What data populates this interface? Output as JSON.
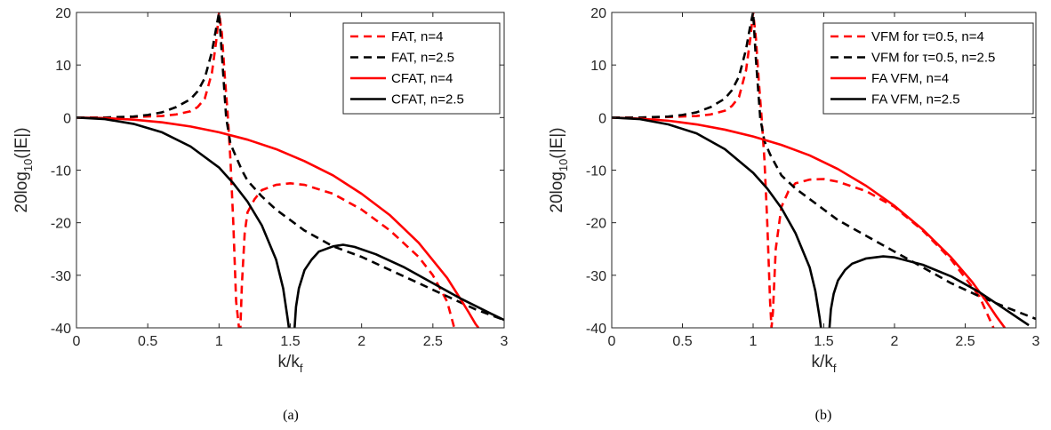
{
  "chart_data": [
    {
      "type": "line",
      "caption": "(a)",
      "xlabel": {
        "main": "k/k",
        "sub": "f"
      },
      "ylabel": {
        "main": "20log",
        "sub": "10",
        "tail": "(|E|)"
      },
      "xlim": [
        0,
        3
      ],
      "ylim": [
        -40,
        20
      ],
      "xticks": [
        0,
        0.5,
        1,
        1.5,
        2,
        2.5,
        3
      ],
      "yticks": [
        -40,
        -30,
        -20,
        -10,
        0,
        10,
        20
      ],
      "xtick_labels": [
        "0",
        "0.5",
        "1",
        "1.5",
        "2",
        "2.5",
        "3"
      ],
      "ytick_labels": [
        "-40",
        "-30",
        "-20",
        "-10",
        "0",
        "10",
        "20"
      ],
      "legend_position": "top-right",
      "series": [
        {
          "name": "FAT, n=4",
          "color": "#ff0000",
          "dash": "dashed",
          "x": [
            0,
            0.2,
            0.4,
            0.6,
            0.7,
            0.8,
            0.85,
            0.9,
            0.95,
            0.98,
            1.0,
            1.02,
            1.04,
            1.06,
            1.08,
            1.1,
            1.12,
            1.14,
            1.15,
            1.16,
            1.18,
            1.2,
            1.25,
            1.3,
            1.4,
            1.5,
            1.6,
            1.8,
            2.0,
            2.2,
            2.4,
            2.5,
            2.6,
            2.65
          ],
          "y": [
            0,
            0,
            0.1,
            0.3,
            0.6,
            1.2,
            2.0,
            3.6,
            8.5,
            14.5,
            20,
            16,
            8,
            1,
            -8,
            -20,
            -35,
            -40,
            -40,
            -32,
            -22,
            -18,
            -15.5,
            -13.8,
            -12.8,
            -12.5,
            -12.8,
            -14.5,
            -17.5,
            -21.5,
            -26.5,
            -30,
            -35,
            -40
          ]
        },
        {
          "name": "FAT, n=2.5",
          "color": "#000000",
          "dash": "dashed",
          "x": [
            0,
            0.2,
            0.4,
            0.5,
            0.6,
            0.7,
            0.8,
            0.85,
            0.9,
            0.95,
            0.98,
            1.0,
            1.02,
            1.05,
            1.08,
            1.12,
            1.16,
            1.2,
            1.3,
            1.4,
            1.5,
            1.6,
            1.8,
            2.0,
            2.2,
            2.4,
            2.6,
            2.8,
            3.0
          ],
          "y": [
            0,
            0,
            0.2,
            0.5,
            1.0,
            2.0,
            3.5,
            5.0,
            7.5,
            12.5,
            17,
            20,
            12,
            0,
            -5,
            -7.5,
            -10,
            -12,
            -15,
            -17.5,
            -19.5,
            -21.5,
            -24.5,
            -26.5,
            -29,
            -31.5,
            -34,
            -36.5,
            -38.5
          ]
        },
        {
          "name": "CFAT, n=4",
          "color": "#ff0000",
          "dash": "solid",
          "x": [
            0,
            0.2,
            0.4,
            0.6,
            0.8,
            1.0,
            1.2,
            1.4,
            1.6,
            1.8,
            2.0,
            2.2,
            2.4,
            2.6,
            2.7,
            2.75,
            2.8,
            2.82
          ],
          "y": [
            0,
            -0.1,
            -0.4,
            -0.9,
            -1.7,
            -2.8,
            -4.2,
            -6.0,
            -8.3,
            -11.0,
            -14.5,
            -18.6,
            -23.8,
            -30.5,
            -34.8,
            -37.0,
            -39.3,
            -40
          ]
        },
        {
          "name": "CFAT, n=2.5",
          "color": "#000000",
          "dash": "solid",
          "x": [
            0,
            0.2,
            0.4,
            0.6,
            0.8,
            1.0,
            1.1,
            1.2,
            1.3,
            1.4,
            1.45,
            1.48,
            1.49
          ],
          "y": [
            0,
            -0.3,
            -1.2,
            -2.8,
            -5.5,
            -9.5,
            -12.5,
            -16.0,
            -20.5,
            -27.0,
            -32.5,
            -38.0,
            -40
          ]
        },
        {
          "name": "",
          "color": "#000000",
          "dash": "solid",
          "x": [
            1.53,
            1.54,
            1.56,
            1.6,
            1.65,
            1.7,
            1.8,
            1.87,
            1.95,
            2.1,
            2.3,
            2.5,
            2.7,
            2.9,
            3.0
          ],
          "y": [
            -40,
            -36,
            -32.5,
            -29,
            -27,
            -25.5,
            -24.5,
            -24.2,
            -24.6,
            -26,
            -28.5,
            -31.5,
            -34.5,
            -37.2,
            -38.5
          ]
        }
      ]
    },
    {
      "type": "line",
      "caption": "(b)",
      "xlabel": {
        "main": "k/k",
        "sub": "f"
      },
      "ylabel": {
        "main": "20log",
        "sub": "10",
        "tail": "(|E|)"
      },
      "xlim": [
        0,
        3
      ],
      "ylim": [
        -40,
        20
      ],
      "xticks": [
        0,
        0.5,
        1,
        1.5,
        2,
        2.5,
        3
      ],
      "yticks": [
        -40,
        -30,
        -20,
        -10,
        0,
        10,
        20
      ],
      "xtick_labels": [
        "0",
        "0.5",
        "1",
        "1.5",
        "2",
        "2.5",
        "3"
      ],
      "ytick_labels": [
        "-40",
        "-30",
        "-20",
        "-10",
        "0",
        "10",
        "20"
      ],
      "legend_position": "top-right",
      "series": [
        {
          "name": "VFM for τ=0.5, n=4",
          "color": "#ff0000",
          "dash": "dashed",
          "x": [
            0,
            0.2,
            0.4,
            0.6,
            0.7,
            0.8,
            0.85,
            0.9,
            0.95,
            0.98,
            1.0,
            1.02,
            1.04,
            1.06,
            1.08,
            1.1,
            1.12,
            1.13,
            1.14,
            1.16,
            1.2,
            1.25,
            1.3,
            1.4,
            1.5,
            1.6,
            1.8,
            2.0,
            2.2,
            2.4,
            2.6,
            2.7
          ],
          "y": [
            0,
            0,
            0.1,
            0.3,
            0.6,
            1.3,
            2.2,
            3.9,
            9.0,
            15.0,
            20,
            15,
            7,
            0,
            -8,
            -20,
            -35,
            -40,
            -37,
            -25,
            -17,
            -14,
            -12.5,
            -11.8,
            -11.7,
            -12.2,
            -14.0,
            -17.0,
            -21.5,
            -27.0,
            -34.0,
            -40
          ]
        },
        {
          "name": "VFM for τ=0.5, n=2.5",
          "color": "#000000",
          "dash": "dashed",
          "x": [
            0,
            0.2,
            0.4,
            0.5,
            0.6,
            0.7,
            0.8,
            0.85,
            0.9,
            0.95,
            0.98,
            1.0,
            1.02,
            1.05,
            1.08,
            1.12,
            1.16,
            1.2,
            1.3,
            1.4,
            1.5,
            1.6,
            1.8,
            2.0,
            2.2,
            2.4,
            2.6,
            2.8,
            3.0
          ],
          "y": [
            0,
            0,
            0.2,
            0.5,
            1.0,
            2.0,
            3.6,
            5.2,
            7.8,
            13,
            17.5,
            20,
            11,
            0,
            -4.5,
            -7,
            -9,
            -11,
            -13.5,
            -15.5,
            -17.5,
            -19.5,
            -22.5,
            -25.5,
            -28.5,
            -31.5,
            -34,
            -36.2,
            -38.3
          ]
        },
        {
          "name": "FA VFM, n=4",
          "color": "#ff0000",
          "dash": "solid",
          "x": [
            0,
            0.2,
            0.4,
            0.6,
            0.8,
            1.0,
            1.2,
            1.4,
            1.6,
            1.8,
            2.0,
            2.2,
            2.4,
            2.55,
            2.65,
            2.72,
            2.78
          ],
          "y": [
            0,
            -0.2,
            -0.6,
            -1.3,
            -2.3,
            -3.6,
            -5.2,
            -7.2,
            -9.8,
            -13.0,
            -16.8,
            -21.3,
            -26.6,
            -31.3,
            -35.0,
            -37.8,
            -40
          ]
        },
        {
          "name": "FA VFM, n=2.5",
          "color": "#000000",
          "dash": "solid",
          "x": [
            0,
            0.2,
            0.4,
            0.6,
            0.8,
            1.0,
            1.1,
            1.2,
            1.3,
            1.4,
            1.44,
            1.47,
            1.48
          ],
          "y": [
            0,
            -0.3,
            -1.3,
            -3.0,
            -6.0,
            -10.5,
            -13.5,
            -17.2,
            -22.0,
            -28.5,
            -33.0,
            -38.0,
            -40
          ]
        },
        {
          "name": "",
          "color": "#000000",
          "dash": "solid",
          "x": [
            1.54,
            1.55,
            1.57,
            1.6,
            1.65,
            1.7,
            1.8,
            1.92,
            2.0,
            2.2,
            2.4,
            2.6,
            2.8,
            2.95
          ],
          "y": [
            -40,
            -36.5,
            -33.5,
            -31,
            -29,
            -27.8,
            -26.8,
            -26.4,
            -26.6,
            -28.0,
            -30.2,
            -33.2,
            -36.8,
            -39.5
          ]
        }
      ]
    }
  ]
}
